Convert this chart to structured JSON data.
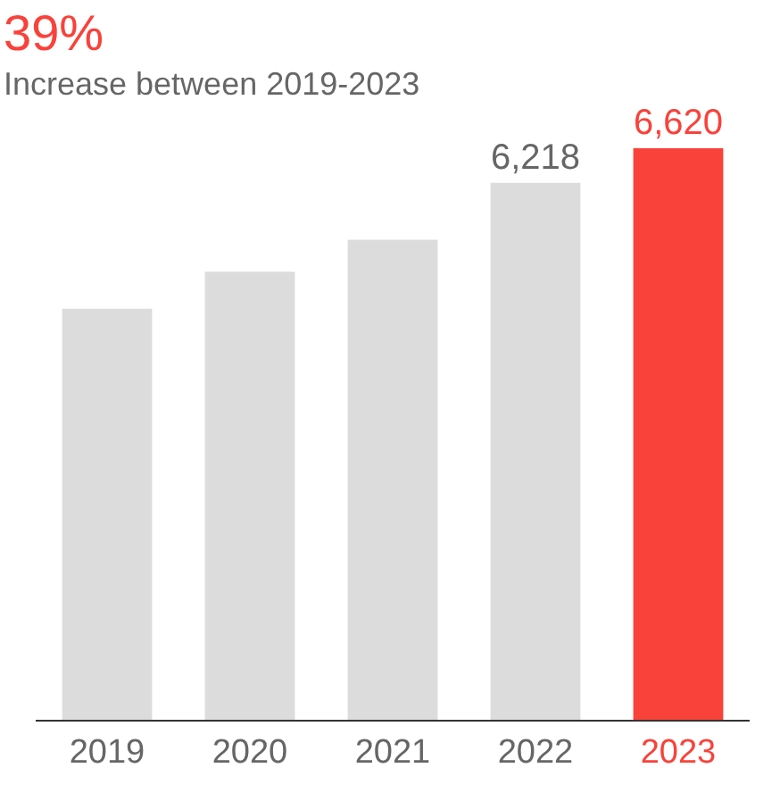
{
  "chart_data": {
    "type": "bar",
    "title": "39%",
    "subtitle": "Increase between 2019-2023",
    "categories": [
      "2019",
      "2020",
      "2021",
      "2022",
      "2023"
    ],
    "values": [
      4760,
      5190,
      5560,
      6218,
      6620
    ],
    "colors": [
      "#dcdcdc",
      "#dcdcdc",
      "#dcdcdc",
      "#dcdcdc",
      "#f9423a"
    ],
    "value_labels": [
      null,
      null,
      null,
      "6,218",
      "6,620"
    ]
  }
}
